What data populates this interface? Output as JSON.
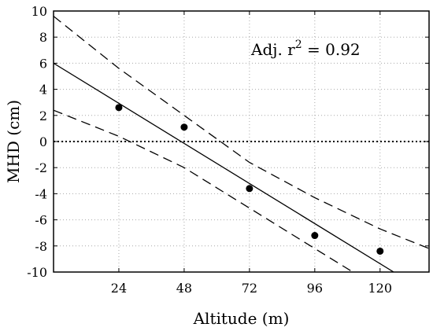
{
  "chart_data": {
    "type": "scatter",
    "title": "",
    "xlabel": "Altitude (m)",
    "ylabel": "MHD (cm)",
    "xlim": [
      0,
      138
    ],
    "ylim": [
      -10,
      10
    ],
    "x_ticks": [
      24,
      48,
      72,
      96,
      120
    ],
    "y_ticks": [
      10,
      8,
      6,
      4,
      2,
      0,
      -2,
      -4,
      -6,
      -8,
      -10
    ],
    "grid": true,
    "zero_line": {
      "y": 0,
      "style": "dotted"
    },
    "points": {
      "x": [
        24,
        48,
        72,
        96,
        120
      ],
      "y": [
        2.6,
        1.1,
        -3.6,
        -7.2,
        -8.4
      ]
    },
    "fit_line": {
      "x": [
        0,
        125
      ],
      "y": [
        6.0,
        -10.0
      ]
    },
    "ci_upper": {
      "x": [
        0,
        24,
        48,
        72,
        96,
        120,
        138
      ],
      "y": [
        9.6,
        5.6,
        2.0,
        -1.6,
        -4.3,
        -6.7,
        -8.2
      ]
    },
    "ci_lower": {
      "x": [
        0,
        24,
        48,
        72,
        96,
        110
      ],
      "y": [
        2.4,
        0.4,
        -2.0,
        -5.1,
        -8.2,
        -10.0
      ]
    },
    "annotation": {
      "prefix": "Adj. r",
      "superscript": "2",
      "suffix": " = 0.92"
    }
  }
}
